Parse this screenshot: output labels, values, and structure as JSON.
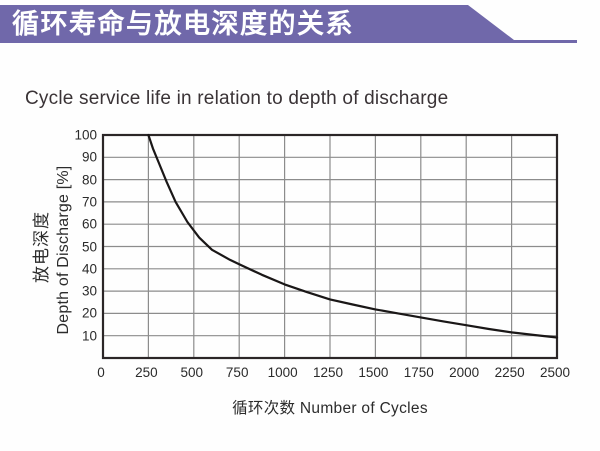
{
  "banner": {
    "title": "循环寿命与放电深度的关系",
    "bg_color": "#7068aa",
    "text_color": "#ffffff"
  },
  "chart_data": {
    "type": "line",
    "title": "Cycle service life in relation to depth of discharge",
    "xlabel": "循环次数 Number of Cycles",
    "ylabel_cn": "放电深度",
    "ylabel_en": "Depth of Discharge [%]",
    "xlim": [
      0,
      2500
    ],
    "ylim": [
      0,
      100
    ],
    "x_ticks": [
      0,
      250,
      500,
      750,
      1000,
      1250,
      1500,
      1750,
      2000,
      2250,
      2500
    ],
    "y_ticks": [
      10,
      20,
      30,
      40,
      50,
      60,
      70,
      80,
      90,
      100
    ],
    "grid": true,
    "legend": "none",
    "series": [
      {
        "name": "depth-of-discharge-vs-cycles",
        "points": [
          [
            250,
            100
          ],
          [
            275,
            94
          ],
          [
            310,
            87
          ],
          [
            350,
            79
          ],
          [
            400,
            70
          ],
          [
            465,
            61
          ],
          [
            530,
            54
          ],
          [
            600,
            48.5
          ],
          [
            700,
            44
          ],
          [
            750,
            42
          ],
          [
            875,
            37.3
          ],
          [
            1000,
            33
          ],
          [
            1125,
            29.5
          ],
          [
            1250,
            26.3
          ],
          [
            1375,
            24
          ],
          [
            1500,
            21.8
          ],
          [
            1625,
            20
          ],
          [
            1750,
            18.2
          ],
          [
            1875,
            16.4
          ],
          [
            2000,
            14.7
          ],
          [
            2125,
            13
          ],
          [
            2250,
            11.5
          ],
          [
            2375,
            10.3
          ],
          [
            2500,
            9.2
          ]
        ]
      }
    ],
    "colors": {
      "curve": "#1a1717",
      "grid": "#8c8c8c",
      "border": "#2b2627"
    }
  }
}
